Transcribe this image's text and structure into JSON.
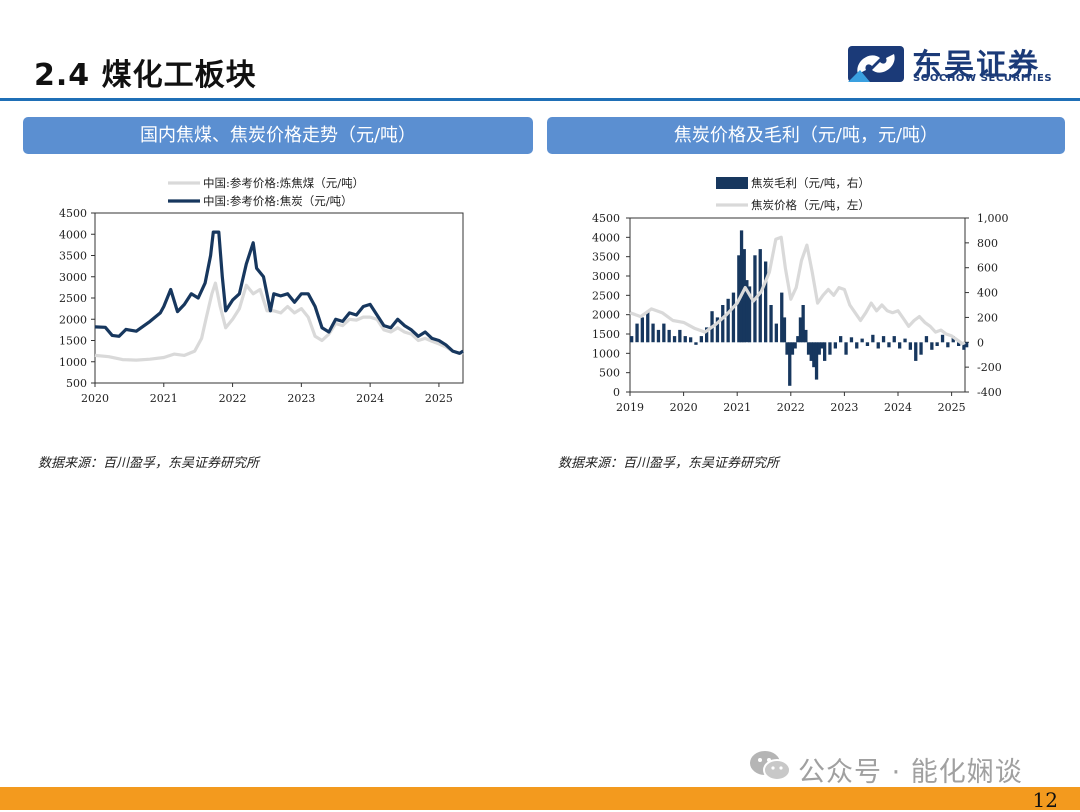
{
  "slide": {
    "title": "2.4 煤化工板块",
    "logo_cn": "东吴证券",
    "logo_en": "SOOCHOW SECURITIES",
    "page_number": "12",
    "watermark": "公众号 · 能化娴谈",
    "colors": {
      "accent": "#1f6fb6",
      "panel": "#5b8fd1",
      "navy": "#17375e",
      "gray": "#d9d9d9",
      "footer": "#f39a1e"
    }
  },
  "panels": [
    {
      "header": "国内焦煤、焦炭价格走势（元/吨）",
      "source": "数据来源：百川盈孚，东吴证券研究所"
    },
    {
      "header": "焦炭价格及毛利（元/吨，元/吨）",
      "source": "数据来源：百川盈孚，东吴证券研究所"
    }
  ],
  "chart_data": [
    {
      "type": "line",
      "x_ticks": [
        "2020",
        "2021",
        "2022",
        "2023",
        "2024",
        "2025"
      ],
      "x_range": [
        2020.0,
        2025.35
      ],
      "ylim": [
        500,
        4500
      ],
      "y_ticks": [
        "500",
        "1000",
        "1500",
        "2000",
        "2500",
        "3000",
        "3500",
        "4000",
        "4500"
      ],
      "legend_placement": "top",
      "grid": false,
      "series": [
        {
          "name": "中国:参考价格:炼焦煤（元/吨）",
          "color": "#d9d9d9",
          "points": [
            [
              2020.0,
              1150
            ],
            [
              2020.2,
              1120
            ],
            [
              2020.4,
              1050
            ],
            [
              2020.6,
              1040
            ],
            [
              2020.8,
              1060
            ],
            [
              2021.0,
              1100
            ],
            [
              2021.15,
              1180
            ],
            [
              2021.3,
              1150
            ],
            [
              2021.45,
              1250
            ],
            [
              2021.55,
              1550
            ],
            [
              2021.62,
              2050
            ],
            [
              2021.7,
              2600
            ],
            [
              2021.75,
              2850
            ],
            [
              2021.82,
              2300
            ],
            [
              2021.9,
              1800
            ],
            [
              2022.0,
              2000
            ],
            [
              2022.1,
              2250
            ],
            [
              2022.2,
              2800
            ],
            [
              2022.3,
              2600
            ],
            [
              2022.4,
              2700
            ],
            [
              2022.5,
              2200
            ],
            [
              2022.6,
              2200
            ],
            [
              2022.7,
              2150
            ],
            [
              2022.8,
              2300
            ],
            [
              2022.9,
              2150
            ],
            [
              2023.0,
              2250
            ],
            [
              2023.1,
              2050
            ],
            [
              2023.2,
              1600
            ],
            [
              2023.3,
              1500
            ],
            [
              2023.4,
              1650
            ],
            [
              2023.5,
              1900
            ],
            [
              2023.6,
              1850
            ],
            [
              2023.7,
              2000
            ],
            [
              2023.8,
              1980
            ],
            [
              2023.9,
              2050
            ],
            [
              2024.0,
              2050
            ],
            [
              2024.1,
              2000
            ],
            [
              2024.2,
              1750
            ],
            [
              2024.3,
              1700
            ],
            [
              2024.4,
              1800
            ],
            [
              2024.5,
              1700
            ],
            [
              2024.6,
              1650
            ],
            [
              2024.7,
              1500
            ],
            [
              2024.8,
              1550
            ],
            [
              2024.9,
              1480
            ],
            [
              2025.0,
              1420
            ],
            [
              2025.1,
              1350
            ],
            [
              2025.2,
              1250
            ],
            [
              2025.3,
              1200
            ],
            [
              2025.35,
              1210
            ]
          ]
        },
        {
          "name": "中国:参考价格:焦炭（元/吨）",
          "color": "#17375e",
          "points": [
            [
              2020.0,
              1820
            ],
            [
              2020.15,
              1810
            ],
            [
              2020.25,
              1620
            ],
            [
              2020.35,
              1600
            ],
            [
              2020.45,
              1760
            ],
            [
              2020.6,
              1720
            ],
            [
              2020.8,
              1950
            ],
            [
              2020.95,
              2150
            ],
            [
              2021.0,
              2300
            ],
            [
              2021.1,
              2700
            ],
            [
              2021.2,
              2180
            ],
            [
              2021.3,
              2350
            ],
            [
              2021.4,
              2600
            ],
            [
              2021.5,
              2500
            ],
            [
              2021.6,
              2850
            ],
            [
              2021.68,
              3500
            ],
            [
              2021.72,
              4050
            ],
            [
              2021.8,
              4050
            ],
            [
              2021.85,
              3000
            ],
            [
              2021.9,
              2200
            ],
            [
              2022.0,
              2450
            ],
            [
              2022.1,
              2600
            ],
            [
              2022.2,
              3300
            ],
            [
              2022.3,
              3800
            ],
            [
              2022.35,
              3200
            ],
            [
              2022.45,
              3000
            ],
            [
              2022.55,
              2200
            ],
            [
              2022.6,
              2600
            ],
            [
              2022.7,
              2550
            ],
            [
              2022.8,
              2600
            ],
            [
              2022.9,
              2400
            ],
            [
              2023.0,
              2600
            ],
            [
              2023.1,
              2600
            ],
            [
              2023.2,
              2300
            ],
            [
              2023.3,
              1800
            ],
            [
              2023.4,
              1700
            ],
            [
              2023.5,
              2000
            ],
            [
              2023.6,
              1950
            ],
            [
              2023.7,
              2150
            ],
            [
              2023.8,
              2100
            ],
            [
              2023.9,
              2300
            ],
            [
              2024.0,
              2350
            ],
            [
              2024.1,
              2100
            ],
            [
              2024.2,
              1850
            ],
            [
              2024.3,
              1800
            ],
            [
              2024.4,
              2000
            ],
            [
              2024.5,
              1850
            ],
            [
              2024.6,
              1750
            ],
            [
              2024.7,
              1600
            ],
            [
              2024.8,
              1700
            ],
            [
              2024.9,
              1550
            ],
            [
              2025.0,
              1500
            ],
            [
              2025.1,
              1400
            ],
            [
              2025.2,
              1250
            ],
            [
              2025.3,
              1200
            ],
            [
              2025.35,
              1250
            ]
          ]
        }
      ]
    },
    {
      "type": "bar-line",
      "x_ticks": [
        "2019",
        "2020",
        "2021",
        "2022",
        "2023",
        "2024",
        "2025"
      ],
      "x_range": [
        2019.0,
        2025.25
      ],
      "y_left": {
        "lim": [
          0,
          4500
        ],
        "ticks": [
          "0",
          "500",
          "1000",
          "1500",
          "2000",
          "2500",
          "3000",
          "3500",
          "4000",
          "4500"
        ]
      },
      "y_right": {
        "lim": [
          -400,
          1000
        ],
        "ticks": [
          "-400",
          "-200",
          "0",
          "200",
          "400",
          "600",
          "800",
          "1,000"
        ]
      },
      "legend_placement": "top",
      "grid": false,
      "series": [
        {
          "name": "焦炭毛利（元/吨，右）",
          "kind": "bar",
          "axis": "right",
          "color": "#17375e",
          "points": [
            [
              2019.0,
              50
            ],
            [
              2019.1,
              150
            ],
            [
              2019.2,
              200
            ],
            [
              2019.3,
              250
            ],
            [
              2019.4,
              150
            ],
            [
              2019.5,
              100
            ],
            [
              2019.6,
              150
            ],
            [
              2019.7,
              100
            ],
            [
              2019.8,
              50
            ],
            [
              2019.9,
              100
            ],
            [
              2020.0,
              50
            ],
            [
              2020.1,
              40
            ],
            [
              2020.2,
              -20
            ],
            [
              2020.3,
              50
            ],
            [
              2020.4,
              120
            ],
            [
              2020.5,
              250
            ],
            [
              2020.6,
              200
            ],
            [
              2020.7,
              300
            ],
            [
              2020.8,
              350
            ],
            [
              2020.9,
              400
            ],
            [
              2021.0,
              700
            ],
            [
              2021.05,
              900
            ],
            [
              2021.1,
              750
            ],
            [
              2021.15,
              500
            ],
            [
              2021.2,
              450
            ],
            [
              2021.3,
              700
            ],
            [
              2021.4,
              750
            ],
            [
              2021.5,
              650
            ],
            [
              2021.6,
              300
            ],
            [
              2021.7,
              150
            ],
            [
              2021.8,
              400
            ],
            [
              2021.85,
              200
            ],
            [
              2021.9,
              -100
            ],
            [
              2021.95,
              -350
            ],
            [
              2022.0,
              -100
            ],
            [
              2022.05,
              -50
            ],
            [
              2022.1,
              50
            ],
            [
              2022.15,
              200
            ],
            [
              2022.2,
              300
            ],
            [
              2022.25,
              100
            ],
            [
              2022.3,
              -100
            ],
            [
              2022.35,
              -150
            ],
            [
              2022.4,
              -200
            ],
            [
              2022.45,
              -300
            ],
            [
              2022.5,
              -100
            ],
            [
              2022.55,
              -50
            ],
            [
              2022.6,
              -150
            ],
            [
              2022.7,
              -100
            ],
            [
              2022.8,
              -50
            ],
            [
              2022.9,
              50
            ],
            [
              2023.0,
              -100
            ],
            [
              2023.1,
              40
            ],
            [
              2023.2,
              -50
            ],
            [
              2023.3,
              30
            ],
            [
              2023.4,
              -30
            ],
            [
              2023.5,
              60
            ],
            [
              2023.6,
              -50
            ],
            [
              2023.7,
              50
            ],
            [
              2023.8,
              -40
            ],
            [
              2023.9,
              50
            ],
            [
              2024.0,
              -50
            ],
            [
              2024.1,
              30
            ],
            [
              2024.2,
              -60
            ],
            [
              2024.3,
              -150
            ],
            [
              2024.4,
              -100
            ],
            [
              2024.5,
              50
            ],
            [
              2024.6,
              -60
            ],
            [
              2024.7,
              -30
            ],
            [
              2024.8,
              60
            ],
            [
              2024.9,
              -40
            ],
            [
              2025.0,
              50
            ],
            [
              2025.1,
              -30
            ],
            [
              2025.2,
              -60
            ],
            [
              2025.25,
              -40
            ]
          ]
        },
        {
          "name": "焦炭价格（元/吨，左）",
          "kind": "line",
          "axis": "left",
          "color": "#d9d9d9",
          "points": [
            [
              2019.0,
              2050
            ],
            [
              2019.2,
              1950
            ],
            [
              2019.4,
              2150
            ],
            [
              2019.6,
              2050
            ],
            [
              2019.8,
              1850
            ],
            [
              2020.0,
              1800
            ],
            [
              2020.2,
              1650
            ],
            [
              2020.4,
              1550
            ],
            [
              2020.6,
              1750
            ],
            [
              2020.8,
              2000
            ],
            [
              2021.0,
              2300
            ],
            [
              2021.15,
              2700
            ],
            [
              2021.3,
              2350
            ],
            [
              2021.45,
              2600
            ],
            [
              2021.6,
              3100
            ],
            [
              2021.72,
              3950
            ],
            [
              2021.82,
              4000
            ],
            [
              2021.9,
              3200
            ],
            [
              2022.0,
              2400
            ],
            [
              2022.1,
              2700
            ],
            [
              2022.2,
              3400
            ],
            [
              2022.3,
              3800
            ],
            [
              2022.4,
              3100
            ],
            [
              2022.5,
              2300
            ],
            [
              2022.6,
              2500
            ],
            [
              2022.7,
              2650
            ],
            [
              2022.8,
              2500
            ],
            [
              2022.9,
              2700
            ],
            [
              2023.0,
              2650
            ],
            [
              2023.1,
              2250
            ],
            [
              2023.2,
              2050
            ],
            [
              2023.3,
              1850
            ],
            [
              2023.4,
              2050
            ],
            [
              2023.5,
              2300
            ],
            [
              2023.6,
              2100
            ],
            [
              2023.7,
              2250
            ],
            [
              2023.8,
              2100
            ],
            [
              2023.9,
              2050
            ],
            [
              2024.0,
              2100
            ],
            [
              2024.1,
              1900
            ],
            [
              2024.2,
              1700
            ],
            [
              2024.3,
              1850
            ],
            [
              2024.4,
              1950
            ],
            [
              2024.5,
              1800
            ],
            [
              2024.6,
              1700
            ],
            [
              2024.7,
              1550
            ],
            [
              2024.8,
              1600
            ],
            [
              2024.9,
              1500
            ],
            [
              2025.0,
              1450
            ],
            [
              2025.1,
              1350
            ],
            [
              2025.2,
              1250
            ],
            [
              2025.25,
              1280
            ]
          ]
        }
      ]
    }
  ]
}
